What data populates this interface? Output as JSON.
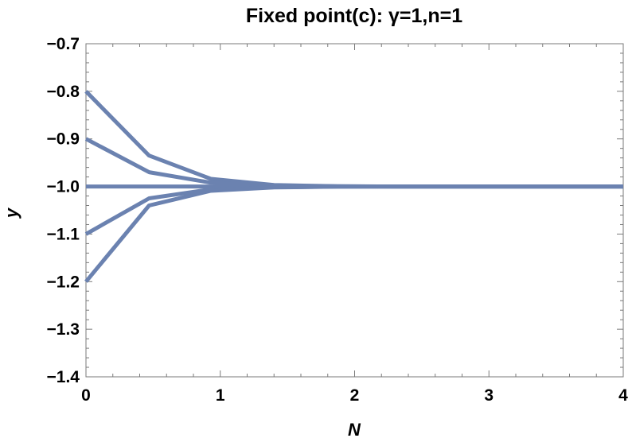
{
  "chart_data": {
    "type": "line",
    "title": "Fixed point(c): γ=1,n=1",
    "xlabel": "N",
    "ylabel": "y",
    "xlim": [
      0,
      4
    ],
    "ylim": [
      -1.4,
      -0.7
    ],
    "x_ticks": [
      "0",
      "1",
      "2",
      "3",
      "4"
    ],
    "y_ticks": [
      "−0.7",
      "−0.8",
      "−0.9",
      "−1.0",
      "−1.1",
      "−1.2",
      "−1.3",
      "−1.4"
    ],
    "series_color": "#6b82b0",
    "grid": false,
    "legend": "none",
    "series": [
      {
        "x": [
          0,
          0.47,
          0.93,
          1.4,
          1.87,
          2.33,
          2.8,
          3.27,
          3.73,
          4.0
        ],
        "values": [
          -0.8,
          -0.935,
          -0.984,
          -0.997,
          -0.9995,
          -1.0,
          -1.0,
          -1.0,
          -1.0,
          -1.0
        ]
      },
      {
        "x": [
          0,
          0.47,
          0.93,
          1.4,
          1.87,
          2.33,
          2.8,
          3.27,
          3.73,
          4.0
        ],
        "values": [
          -0.9,
          -0.97,
          -0.992,
          -0.998,
          -0.9997,
          -1.0,
          -1.0,
          -1.0,
          -1.0,
          -1.0
        ]
      },
      {
        "x": [
          0,
          0.47,
          0.93,
          1.4,
          1.87,
          2.33,
          2.8,
          3.27,
          3.73,
          4.0
        ],
        "values": [
          -1.0,
          -1.0,
          -1.0,
          -1.0,
          -1.0,
          -1.0,
          -1.0,
          -1.0,
          -1.0,
          -1.0
        ]
      },
      {
        "x": [
          0,
          0.47,
          0.93,
          1.4,
          1.87,
          2.33,
          2.8,
          3.27,
          3.73,
          4.0
        ],
        "values": [
          -1.1,
          -1.025,
          -1.006,
          -1.0015,
          -1.0003,
          -1.0,
          -1.0,
          -1.0,
          -1.0,
          -1.0
        ]
      },
      {
        "x": [
          0,
          0.47,
          0.93,
          1.4,
          1.87,
          2.33,
          2.8,
          3.27,
          3.73,
          4.0
        ],
        "values": [
          -1.2,
          -1.04,
          -1.009,
          -1.002,
          -1.0004,
          -1.0,
          -1.0,
          -1.0,
          -1.0,
          -1.0
        ]
      }
    ]
  }
}
